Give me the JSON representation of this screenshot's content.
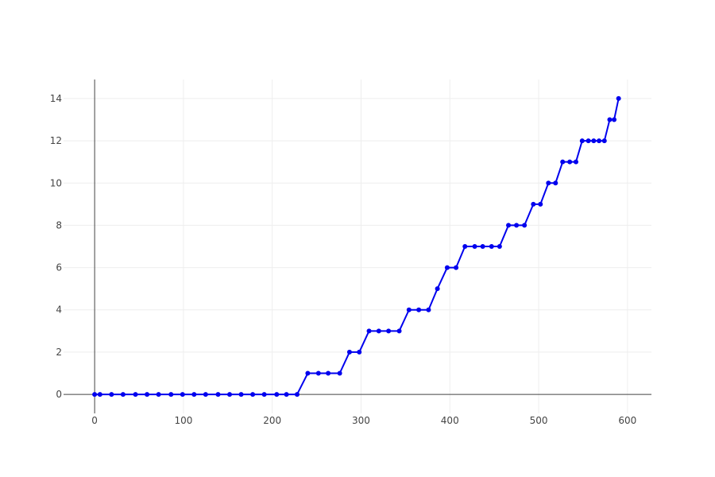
{
  "chart_data": {
    "type": "line",
    "title": "",
    "xlabel": "",
    "ylabel": "",
    "xlim": [
      -35,
      627
    ],
    "ylim": [
      -0.9,
      14.9
    ],
    "x_ticks": [
      0,
      100,
      200,
      300,
      400,
      500,
      600
    ],
    "y_ticks": [
      0,
      2,
      4,
      6,
      8,
      10,
      12,
      14
    ],
    "grid": true,
    "legend": "none",
    "series": [
      {
        "color": "#0000ee",
        "marker": "circle",
        "points": [
          [
            0,
            0
          ],
          [
            6,
            0
          ],
          [
            19,
            0
          ],
          [
            32,
            0
          ],
          [
            46,
            0
          ],
          [
            59,
            0
          ],
          [
            72,
            0
          ],
          [
            86,
            0
          ],
          [
            99,
            0
          ],
          [
            112,
            0
          ],
          [
            125,
            0
          ],
          [
            139,
            0
          ],
          [
            152,
            0
          ],
          [
            165,
            0
          ],
          [
            178,
            0
          ],
          [
            191,
            0
          ],
          [
            205,
            0
          ],
          [
            216,
            0
          ],
          [
            228,
            0
          ],
          [
            240,
            1
          ],
          [
            252,
            1
          ],
          [
            263,
            1
          ],
          [
            276,
            1
          ],
          [
            287,
            2
          ],
          [
            298,
            2
          ],
          [
            309,
            3
          ],
          [
            320,
            3
          ],
          [
            331,
            3
          ],
          [
            343,
            3
          ],
          [
            354,
            4
          ],
          [
            365,
            4
          ],
          [
            376,
            4
          ],
          [
            386,
            5
          ],
          [
            397,
            6
          ],
          [
            407,
            6
          ],
          [
            417,
            7
          ],
          [
            428,
            7
          ],
          [
            437,
            7
          ],
          [
            447,
            7
          ],
          [
            456,
            7
          ],
          [
            466,
            8
          ],
          [
            475,
            8
          ],
          [
            484,
            8
          ],
          [
            494,
            9
          ],
          [
            502,
            9
          ],
          [
            511,
            10
          ],
          [
            519,
            10
          ],
          [
            527,
            11
          ],
          [
            535,
            11
          ],
          [
            542,
            11
          ],
          [
            549,
            12
          ],
          [
            556,
            12
          ],
          [
            562,
            12
          ],
          [
            568,
            12
          ],
          [
            574,
            12
          ],
          [
            580,
            13
          ],
          [
            585,
            13
          ],
          [
            590,
            14
          ]
        ]
      }
    ]
  },
  "colors": {
    "line": "#0000ee",
    "grid": "#eeeeee",
    "axis": "#444444",
    "tick_text": "#444444",
    "background": "#ffffff"
  }
}
